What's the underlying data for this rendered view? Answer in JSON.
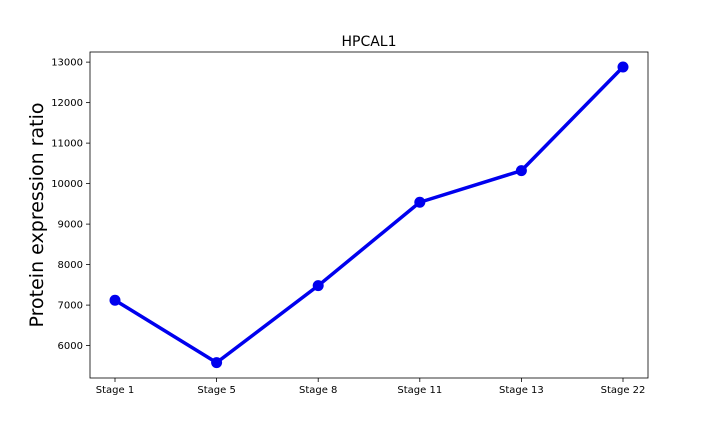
{
  "chart_data": {
    "type": "line",
    "title": "HPCAL1",
    "xlabel": "",
    "ylabel": "Protein expression ratio",
    "categories": [
      "Stage 1",
      "Stage 5",
      "Stage 8",
      "Stage 11",
      "Stage 13",
      "Stage 22"
    ],
    "series": [
      {
        "values": [
          7120,
          5580,
          7480,
          9540,
          10320,
          12880
        ]
      }
    ],
    "ylim": [
      5200,
      13250
    ],
    "yticks": [
      6000,
      7000,
      8000,
      9000,
      10000,
      11000,
      12000,
      13000
    ],
    "grid": false,
    "legend": "none",
    "colors": {
      "line": "#0000ee",
      "marker": "#0000ee",
      "axes": "#000000"
    }
  }
}
